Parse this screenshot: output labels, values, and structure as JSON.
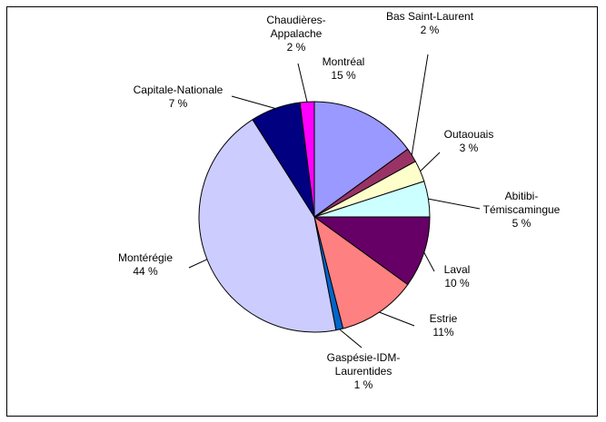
{
  "chart_data": {
    "type": "pie",
    "title": "",
    "unit": "%",
    "slices": [
      {
        "label": "Montréal",
        "line2": "",
        "value_text": "15 %",
        "value": 15,
        "color": "#9999FF"
      },
      {
        "label": "Bas Saint-Laurent",
        "line2": "",
        "value_text": "2 %",
        "value": 2,
        "color": "#993366"
      },
      {
        "label": "Outaouais",
        "line2": "",
        "value_text": "3 %",
        "value": 3,
        "color": "#FFFFCC"
      },
      {
        "label": "Abitibi-",
        "line2": "Témiscamingue",
        "value_text": "5 %",
        "value": 5,
        "color": "#CCFFFF"
      },
      {
        "label": "Laval",
        "line2": "",
        "value_text": "10 %",
        "value": 10,
        "color": "#660066"
      },
      {
        "label": "Estrie",
        "line2": "",
        "value_text": "11%",
        "value": 11,
        "color": "#FF8080"
      },
      {
        "label": "Gaspésie-IDM-",
        "line2": "Laurentides",
        "value_text": "1 %",
        "value": 1,
        "color": "#0066CC"
      },
      {
        "label": "Montérégie",
        "line2": "",
        "value_text": "44 %",
        "value": 44,
        "color": "#CCCCFF"
      },
      {
        "label": "Capitale-Nationale",
        "line2": "",
        "value_text": "7 %",
        "value": 7,
        "color": "#000080"
      },
      {
        "label": "Chaudières-",
        "line2": "Appalache",
        "value_text": "2 %",
        "value": 2,
        "color": "#FF00FF"
      }
    ]
  }
}
